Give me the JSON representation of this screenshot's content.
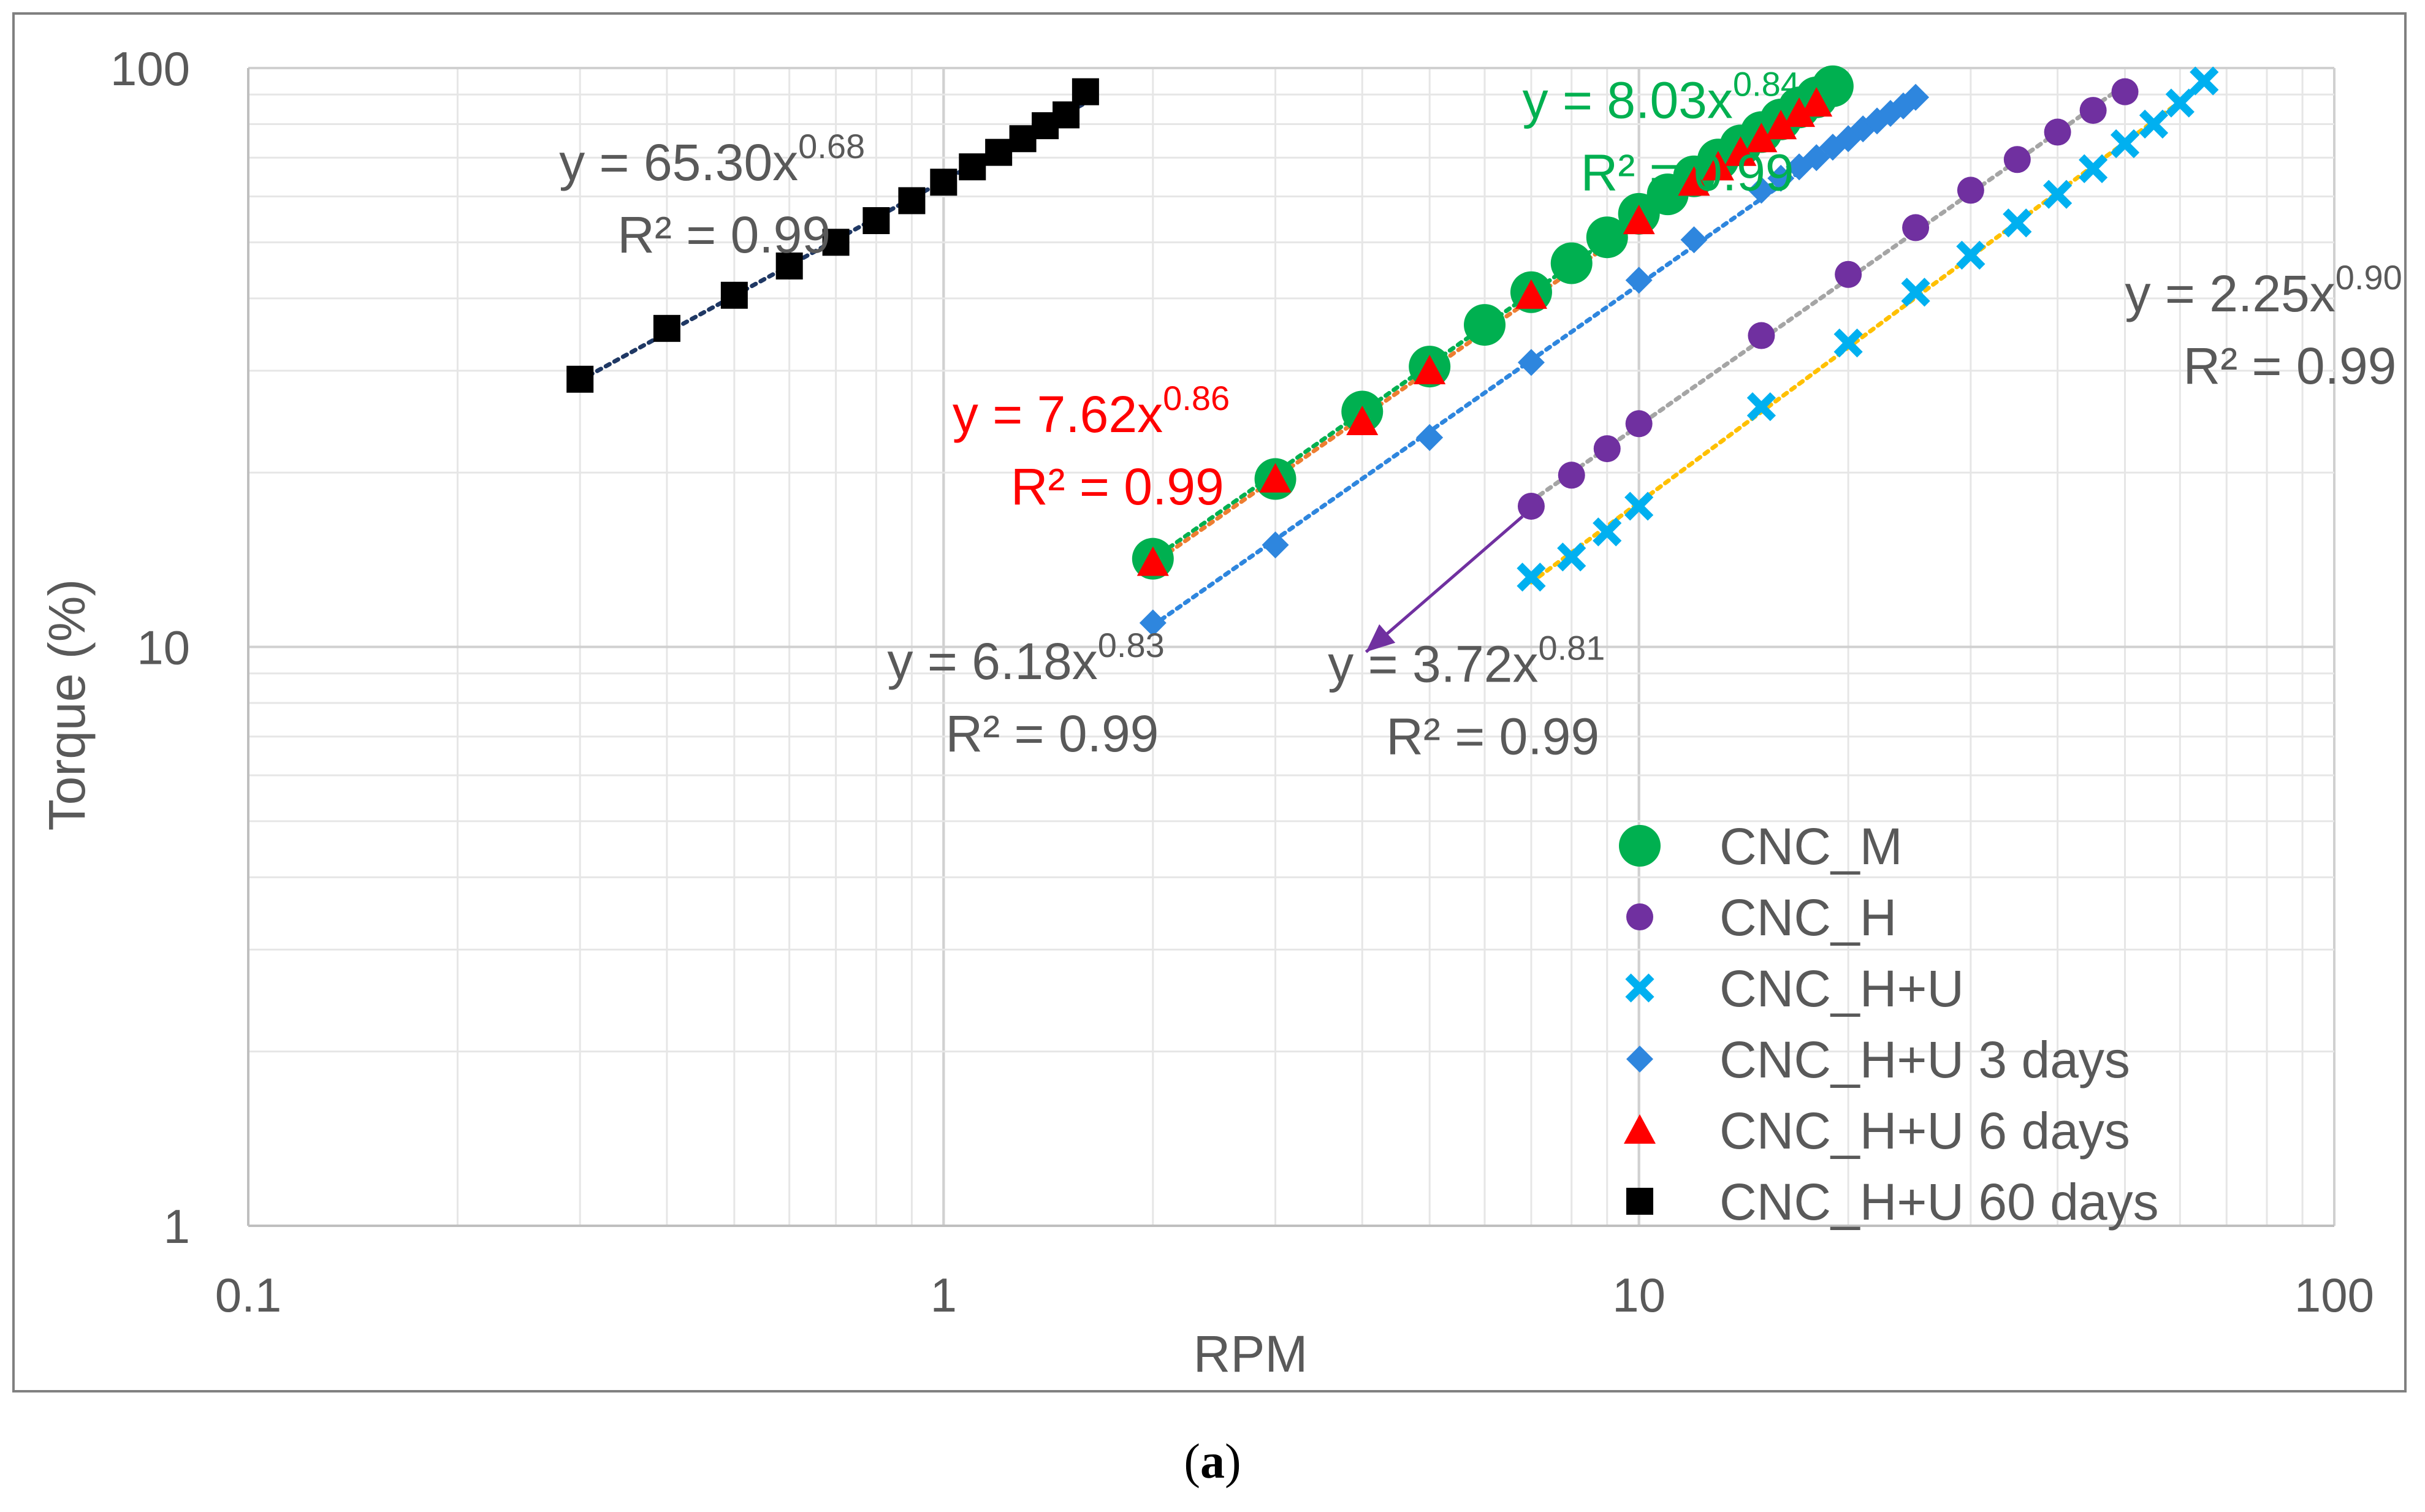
{
  "chart_data": {
    "type": "scatter",
    "title": "",
    "xlabel": "RPM",
    "ylabel": "Torque (%)",
    "x_scale": "log",
    "y_scale": "log",
    "xlim": [
      0.1,
      100
    ],
    "ylim": [
      1,
      100
    ],
    "x_tick_labels": [
      "0.1",
      "1",
      "10",
      "100"
    ],
    "y_tick_labels": [
      "1",
      "10",
      "100"
    ],
    "grid": true,
    "legend_position": "bottom-right",
    "series": [
      {
        "name": "CNC_M",
        "marker": "circle-large",
        "color": "#00B050",
        "trendline_color": "#00B050",
        "x": [
          2,
          3,
          4,
          5,
          6,
          7,
          8,
          9,
          10,
          11,
          12,
          13,
          14,
          15,
          16,
          17,
          18,
          19
        ],
        "y": [
          14.2,
          19.5,
          25.5,
          30.5,
          36.0,
          41.0,
          46.0,
          51.0,
          56.0,
          60.5,
          65.0,
          69.5,
          73.5,
          77.5,
          81.5,
          85.5,
          89.0,
          93.0
        ]
      },
      {
        "name": "CNC_H",
        "marker": "circle",
        "color": "#7030A0",
        "trendline_color": "#A5A5A5",
        "x": [
          7,
          8,
          9,
          10,
          15,
          20,
          25,
          30,
          35,
          40,
          45,
          50
        ],
        "y": [
          17.5,
          19.8,
          22.0,
          24.3,
          34.5,
          44.0,
          53.0,
          61.5,
          69.5,
          77.5,
          84.5,
          91.0
        ]
      },
      {
        "name": "CNC_H+U",
        "marker": "x",
        "color": "#00B0F0",
        "trendline_color": "#FFC000",
        "x": [
          7,
          8,
          9,
          10,
          15,
          20,
          25,
          30,
          35,
          40,
          45,
          50,
          55,
          60,
          65
        ],
        "y": [
          13.2,
          14.3,
          15.8,
          17.5,
          26.0,
          33.5,
          41.0,
          47.5,
          54.0,
          60.5,
          67.0,
          74.0,
          80.0,
          87.0,
          95.0
        ]
      },
      {
        "name": "CNC_H+U 3 days",
        "marker": "diamond",
        "color": "#2E86DE",
        "trendline_color": "#2E86DE",
        "x": [
          2,
          3,
          5,
          7,
          10,
          12,
          15,
          16,
          17,
          18,
          19,
          20,
          21,
          22,
          23,
          24,
          25
        ],
        "y": [
          11.0,
          15.0,
          23.0,
          31.0,
          43.0,
          50.5,
          61.5,
          64.5,
          67.5,
          70.0,
          73.0,
          75.5,
          78.5,
          81.0,
          83.5,
          86.0,
          89.0
        ]
      },
      {
        "name": "CNC_H+U 6 days",
        "marker": "triangle",
        "color": "#FF0000",
        "trendline_color": "#ED7D31",
        "x": [
          2,
          3,
          4,
          5,
          7,
          10,
          12,
          13,
          14,
          15,
          16,
          17,
          18
        ],
        "y": [
          14.0,
          19.5,
          24.5,
          30.0,
          40.5,
          54.5,
          63.5,
          67.5,
          71.5,
          75.5,
          79.5,
          83.5,
          87.0
        ]
      },
      {
        "name": "CNC_H+U 60 days",
        "marker": "square",
        "color": "#000000",
        "trendline_color": "#1F3864",
        "x": [
          0.3,
          0.4,
          0.5,
          0.6,
          0.7,
          0.8,
          0.9,
          1.0,
          1.1,
          1.2,
          1.3,
          1.4,
          1.5,
          1.6
        ],
        "y": [
          29.0,
          35.5,
          40.5,
          45.5,
          50.0,
          54.5,
          59.0,
          63.5,
          67.5,
          71.5,
          75.5,
          79.5,
          83.0,
          91.0
        ]
      }
    ],
    "annotations": [
      {
        "series": "CNC_H+U 60 days",
        "equation": "y = 65.30x",
        "exponent": "0.68",
        "r2": "R² = 0.99",
        "color": "#595959",
        "anchor_x": 0.28,
        "anchor_y": 64
      },
      {
        "series": "CNC_M",
        "equation": "y = 8.03x",
        "exponent": "0.84",
        "r2": "R² = 0.99",
        "color": "#00B050",
        "anchor_x": 6.8,
        "anchor_y": 82
      },
      {
        "series": "CNC_H+U 6 days",
        "equation": "y = 7.62x",
        "exponent": "0.86",
        "r2": "R² = 0.99",
        "color": "#FF0000",
        "anchor_x": 1.03,
        "anchor_y": 23.5
      },
      {
        "series": "CNC_H+U 3 days",
        "equation": "y = 6.18x",
        "exponent": "0.83",
        "r2": "R² = 0.99",
        "color": "#595959",
        "anchor_x": 0.83,
        "anchor_y": 8.8
      },
      {
        "series": "CNC_H",
        "equation": "y = 3.72x",
        "exponent": "0.81",
        "r2": "R² = 0.99",
        "color": "#595959",
        "anchor_x": 3.57,
        "anchor_y": 8.7
      },
      {
        "series": "CNC_H+U",
        "equation": "y = 2.25x",
        "exponent": "0.90",
        "r2": "R² = 0.99",
        "color": "#595959",
        "anchor_x": 50,
        "anchor_y": 38
      }
    ],
    "arrow": {
      "from_x": 6.8,
      "from_y": 16.8,
      "to_x": 4.05,
      "to_y": 9.8,
      "color": "#7030A0"
    }
  },
  "caption": {
    "label": "a"
  }
}
